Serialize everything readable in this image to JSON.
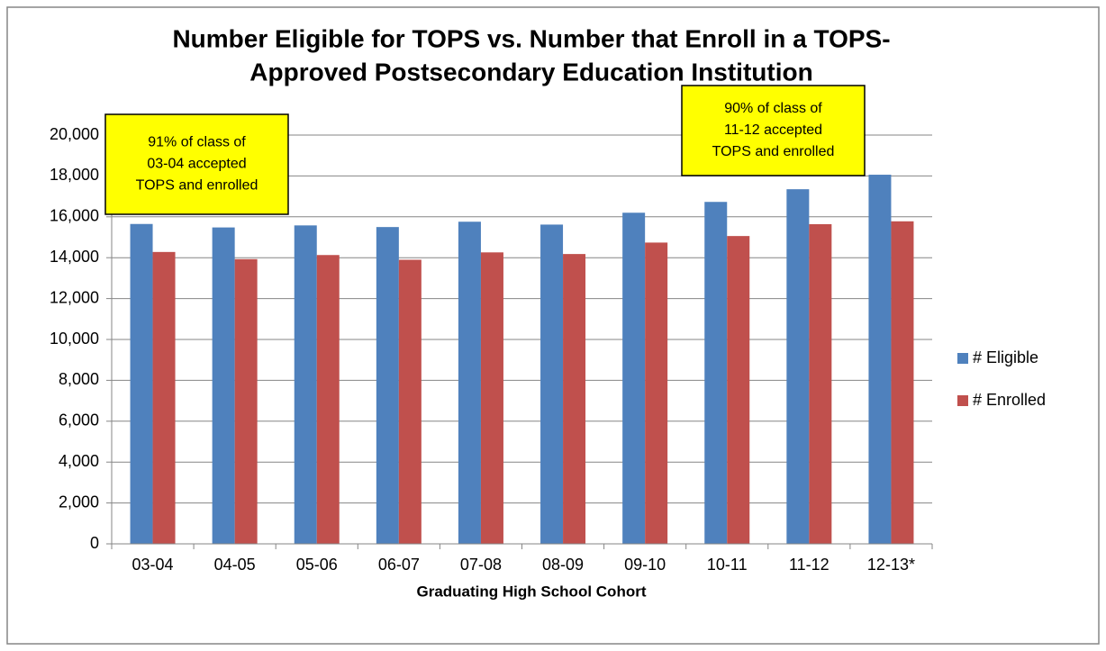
{
  "chart_data": {
    "type": "bar",
    "title": [
      "Number Eligible for TOPS vs. Number that Enroll in a TOPS-",
      "Approved Postsecondary Education Institution"
    ],
    "x_label": "Graduating High School Cohort",
    "categories": [
      "03-04",
      "04-05",
      "05-06",
      "06-07",
      "07-08",
      "08-09",
      "09-10",
      "10-11",
      "11-12",
      "12-13*"
    ],
    "series": [
      {
        "name": "# Eligible",
        "color": "#4f81bd",
        "values": [
          15650,
          15480,
          15580,
          15500,
          15760,
          15620,
          16200,
          16730,
          17350,
          18060
        ]
      },
      {
        "name": "# Enrolled",
        "color": "#c0504d",
        "values": [
          14280,
          13930,
          14130,
          13900,
          14260,
          14180,
          14740,
          15060,
          15640,
          15780
        ]
      }
    ],
    "ylim": [
      0,
      20000
    ],
    "yticks": [
      0,
      {
        "value": 2000,
        "label": "2,000"
      },
      {
        "value": 4000,
        "label": "4,000"
      },
      {
        "value": 6000,
        "label": "6,000"
      },
      {
        "value": 8000,
        "label": "8,000"
      },
      {
        "value": 10000,
        "label": "10,000"
      },
      {
        "value": 12000,
        "label": "12,000"
      },
      {
        "value": 14000,
        "label": "14,000"
      },
      {
        "value": 16000,
        "label": "16,000"
      },
      {
        "value": 18000,
        "label": "18,000"
      },
      {
        "value": 20000,
        "label": "20,000"
      }
    ],
    "grid": true,
    "legend": "right",
    "annotations": [
      {
        "lines": [
          "91% of class of",
          "03-04 accepted",
          "TOPS and enrolled"
        ],
        "color": "#ffff00"
      },
      {
        "lines": [
          "90% of class of",
          "11-12 accepted",
          "TOPS and enrolled"
        ],
        "color": "#ffff00"
      }
    ]
  }
}
